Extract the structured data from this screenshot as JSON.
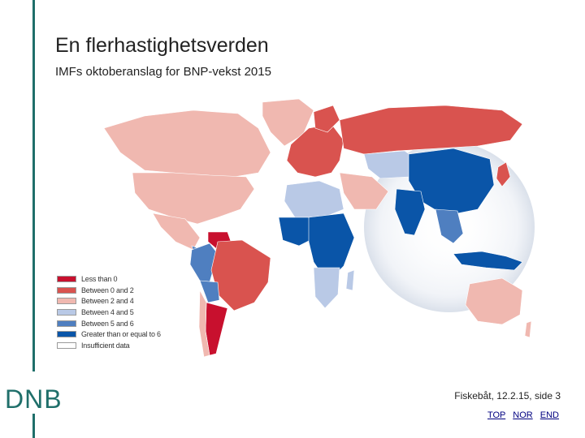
{
  "slide": {
    "title": "En flerhastighetsverden",
    "subtitle": "IMFs oktoberanslag for BNP-vekst 2015",
    "logo_text": "DNB",
    "footer_text": "Fiskebåt, 12.2.15, side 3",
    "nav": {
      "top": "TOP",
      "nor": "NOR",
      "end": "END"
    },
    "accent_color": "#1f6f6a"
  },
  "legend": [
    {
      "label": "Less than 0",
      "color": "#c8102e"
    },
    {
      "label": "Between 0 and 2",
      "color": "#d9534f"
    },
    {
      "label": "Between 2 and 4",
      "color": "#f0b8b0"
    },
    {
      "label": "Between 4 and 5",
      "color": "#b9c9e6"
    },
    {
      "label": "Between 5 and 6",
      "color": "#4f7fc0"
    },
    {
      "label": "Greater than or equal to 6",
      "color": "#0a55a8"
    },
    {
      "label": "Insufficient data",
      "color": "#ffffff"
    }
  ]
}
